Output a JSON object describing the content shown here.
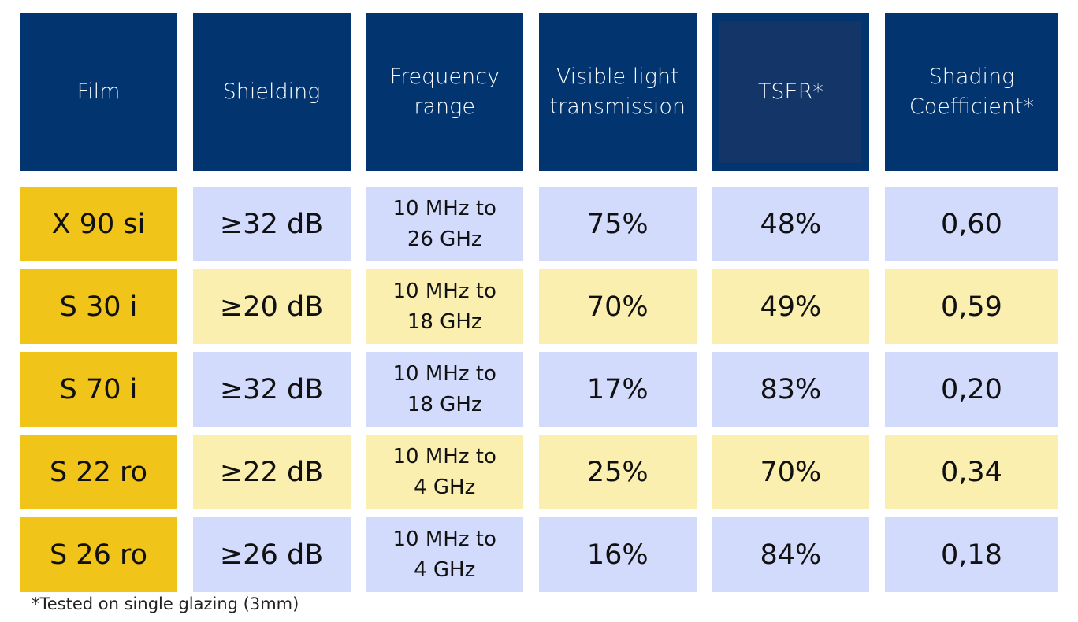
{
  "headers": [
    "Film",
    "Shielding",
    "Frequency\nrange",
    "Visible light\ntransmission",
    "TSER*",
    "Shading\nCoefficient*"
  ],
  "rows": [
    {
      "film": "X 90 si",
      "shielding": "≥32 dB",
      "frequency": "10 MHz to\n26 GHz",
      "vlt": "75%",
      "tser": "48%",
      "sc": "0,60"
    },
    {
      "film": "S 30 i",
      "shielding": "≥20 dB",
      "frequency": "10 MHz to\n18 GHz",
      "vlt": "70%",
      "tser": "49%",
      "sc": "0,59"
    },
    {
      "film": "S 70 i",
      "shielding": "≥32 dB",
      "frequency": "10 MHz to\n18 GHz",
      "vlt": "17%",
      "tser": "83%",
      "sc": "0,20"
    },
    {
      "film": "S 22 ro",
      "shielding": "≥22 dB",
      "frequency": "10 MHz to\n4 GHz",
      "vlt": "25%",
      "tser": "70%",
      "sc": "0,34"
    },
    {
      "film": "S 26 ro",
      "shielding": "≥26 dB",
      "frequency": "10 MHz to\n4 GHz",
      "vlt": "16%",
      "tser": "84%",
      "sc": "0,18"
    }
  ],
  "footnote": "*Tested on single glazing (3mm)",
  "colors": {
    "header": "#02346f",
    "film": "#f0c419",
    "row_blue": "#d3dbfd",
    "row_yellow": "#fbefb0"
  }
}
